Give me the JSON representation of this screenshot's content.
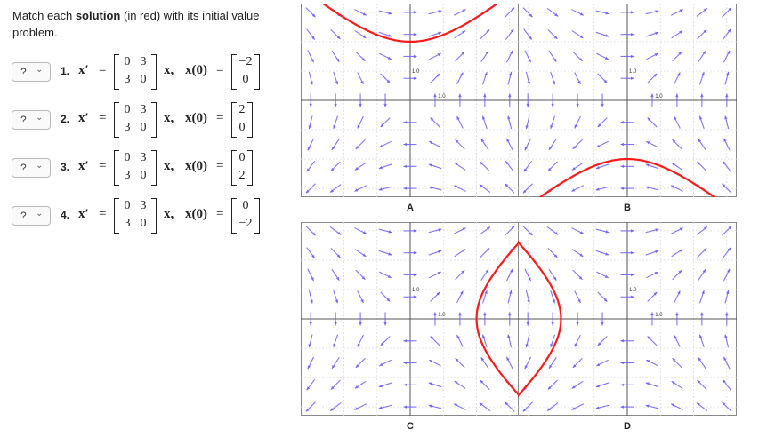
{
  "instructions": {
    "prefix": "Match each ",
    "bold": "solution",
    "suffix": " (in red) with its initial value problem."
  },
  "problems": [
    {
      "number": "1.",
      "selected": "?",
      "matrix": [
        "0",
        "3",
        "3",
        "0"
      ],
      "ic": [
        "−2",
        "0"
      ]
    },
    {
      "number": "2.",
      "selected": "?",
      "matrix": [
        "0",
        "3",
        "3",
        "0"
      ],
      "ic": [
        "2",
        "0"
      ]
    },
    {
      "number": "3.",
      "selected": "?",
      "matrix": [
        "0",
        "3",
        "3",
        "0"
      ],
      "ic": [
        "0",
        "2"
      ]
    },
    {
      "number": "4.",
      "selected": "?",
      "matrix": [
        "0",
        "3",
        "3",
        "0"
      ],
      "ic": [
        "0",
        "−2"
      ]
    }
  ],
  "equation": {
    "lhs": "x′",
    "equals": "=",
    "vec": "x,",
    "ic_label": "x(0)"
  },
  "graphs": [
    {
      "label": "A",
      "tick_x": "1.0",
      "tick_y": "1.0",
      "ic": [
        0,
        2
      ]
    },
    {
      "label": "B",
      "tick_x": "1.0",
      "tick_y": "1.0",
      "ic": [
        0,
        -2
      ]
    },
    {
      "label": "C",
      "tick_x": "1.0",
      "tick_y": "1.0",
      "ic": [
        2,
        0
      ]
    },
    {
      "label": "D",
      "tick_x": "1.0",
      "tick_y": "1.0",
      "ic": [
        -2,
        0
      ]
    }
  ],
  "colors": {
    "arrow": "#6a5cff",
    "solution": "#ff1a1a",
    "axis": "#555555",
    "grid": "#dddddd"
  }
}
